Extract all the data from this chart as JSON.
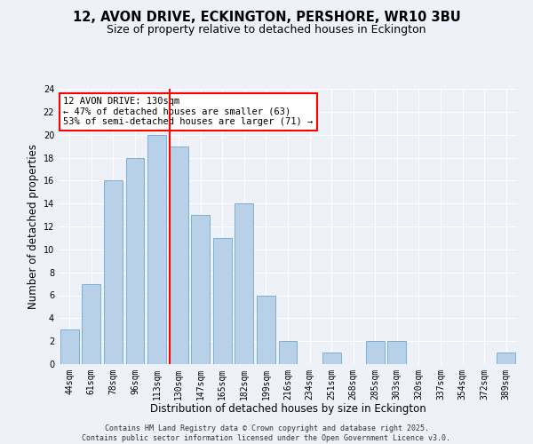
{
  "title": "12, AVON DRIVE, ECKINGTON, PERSHORE, WR10 3BU",
  "subtitle": "Size of property relative to detached houses in Eckington",
  "xlabel": "Distribution of detached houses by size in Eckington",
  "ylabel": "Number of detached properties",
  "categories": [
    "44sqm",
    "61sqm",
    "78sqm",
    "96sqm",
    "113sqm",
    "130sqm",
    "147sqm",
    "165sqm",
    "182sqm",
    "199sqm",
    "216sqm",
    "234sqm",
    "251sqm",
    "268sqm",
    "285sqm",
    "303sqm",
    "320sqm",
    "337sqm",
    "354sqm",
    "372sqm",
    "389sqm"
  ],
  "values": [
    3,
    7,
    16,
    18,
    20,
    19,
    13,
    11,
    14,
    6,
    2,
    0,
    1,
    0,
    2,
    2,
    0,
    0,
    0,
    0,
    1
  ],
  "bar_color": "#b8d0e8",
  "bar_edge_color": "#7aafd4",
  "highlight_index": 5,
  "annotation_text": "12 AVON DRIVE: 130sqm\n← 47% of detached houses are smaller (63)\n53% of semi-detached houses are larger (71) →",
  "annotation_box_color": "white",
  "annotation_box_edge_color": "red",
  "vline_color": "red",
  "ylim": [
    0,
    24
  ],
  "yticks": [
    0,
    2,
    4,
    6,
    8,
    10,
    12,
    14,
    16,
    18,
    20,
    22,
    24
  ],
  "background_color": "#eef2f8",
  "grid_color": "white",
  "footer": "Contains HM Land Registry data © Crown copyright and database right 2025.\nContains public sector information licensed under the Open Government Licence v3.0.",
  "title_fontsize": 10.5,
  "subtitle_fontsize": 9,
  "xlabel_fontsize": 8.5,
  "ylabel_fontsize": 8.5,
  "tick_fontsize": 7,
  "annotation_fontsize": 7.5,
  "footer_fontsize": 6
}
